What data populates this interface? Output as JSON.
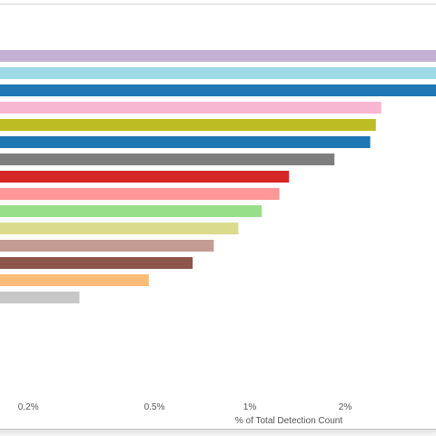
{
  "chart_data": {
    "type": "bar",
    "orientation": "horizontal",
    "title": "",
    "ylabel": "",
    "xlabel": "% of Total Detection Count",
    "x_scale": "log",
    "ticks": [
      {
        "value": 0.2,
        "label": "0.2%"
      },
      {
        "value": 0.5,
        "label": "0.5%"
      },
      {
        "value": 1,
        "label": "1%"
      },
      {
        "value": 2,
        "label": "2%"
      }
    ],
    "grid": false,
    "legend": "none",
    "bars": [
      {
        "value": 4.0,
        "color": "#c5b0d5"
      },
      {
        "value": 4.0,
        "color": "#9edae5"
      },
      {
        "value": 4.0,
        "color": "#1f77b4"
      },
      {
        "value": 2.6,
        "color": "#f7b6d2"
      },
      {
        "value": 2.5,
        "color": "#bcbd22"
      },
      {
        "value": 2.4,
        "color": "#1f77b4"
      },
      {
        "value": 1.85,
        "color": "#7f7f7f"
      },
      {
        "value": 1.33,
        "color": "#d62728"
      },
      {
        "value": 1.24,
        "color": "#ff9896"
      },
      {
        "value": 1.09,
        "color": "#98df8a"
      },
      {
        "value": 0.92,
        "color": "#dbdb8d"
      },
      {
        "value": 0.77,
        "color": "#c49c94"
      },
      {
        "value": 0.66,
        "color": "#8c564b"
      },
      {
        "value": 0.48,
        "color": "#ffbb78"
      },
      {
        "value": 0.29,
        "color": "#c7c7c7"
      }
    ]
  }
}
